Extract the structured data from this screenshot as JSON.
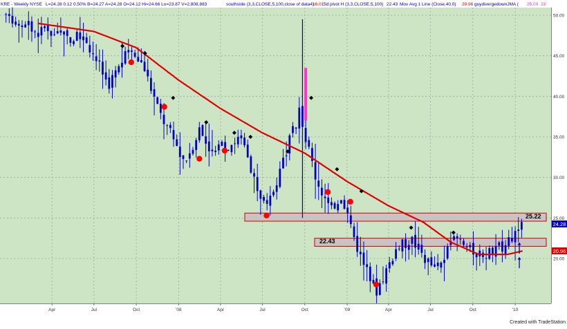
{
  "header": {
    "symbol_line": "KRE - Weekly  NYSE",
    "quote": "L=24.28  0.12  0.50%  B=24.27  A=24.28  O=24.12  Hi=24.66  Lo=23.87  V=2,808,883",
    "study1": "southside (3,3,CLOSE,5,100,close of data4)",
    "study1_value": "16.01",
    "study2": "5d pivot H (3,3,CLOSE,5,100)",
    "study2_value": "22.43",
    "study3": "Mov Avg 1 Line (Close,40,0)",
    "study3_value": "20.96",
    "study4": "guydivergedownJMA (",
    "study4_value": "25.09",
    "study4_extra": "23"
  },
  "footer": {
    "credit": "Created with TradeStation"
  },
  "annotations": {
    "resistance_label": "25.22",
    "support_label": "22.43",
    "last_price_tag": "24.28",
    "ma_price_tag": "20.96"
  },
  "colors": {
    "background": "#cde5c4",
    "grid": "#9aa79a",
    "up_bar": "#0000cc",
    "ma_line": "#e00000",
    "highlight_bar": "#ff33cc",
    "zone_fill": "#c9c3c3",
    "zone_border": "#cc0000",
    "pivot_high_dot": "#000000",
    "pivot_low_dot": "#ff0000",
    "arrow": "#0000cc"
  },
  "chart_data": {
    "type": "ohlc-bar",
    "title": "KRE - Weekly",
    "x_tick_labels": [
      "Apr",
      "Jul",
      "Oct",
      "'08",
      "Apr",
      "Jul",
      "Oct",
      "'09",
      "Apr",
      "Jul",
      "Oct",
      "'10"
    ],
    "y_tick_labels": [
      "20.00",
      "25.00",
      "30.00",
      "35.00",
      "40.00",
      "45.00",
      "50.00"
    ],
    "ylim": [
      14.5,
      52
    ],
    "grid": true,
    "close_anchors": [
      {
        "date": "2007-01-01",
        "value": 49.5
      },
      {
        "date": "2007-03-01",
        "value": 48.0
      },
      {
        "date": "2007-05-01",
        "value": 47.5
      },
      {
        "date": "2007-06-15",
        "value": 47.0
      },
      {
        "date": "2007-08-01",
        "value": 41.5
      },
      {
        "date": "2007-09-15",
        "value": 45.5
      },
      {
        "date": "2007-10-15",
        "value": 44.0
      },
      {
        "date": "2007-11-20",
        "value": 38.0
      },
      {
        "date": "2008-01-15",
        "value": 32.0
      },
      {
        "date": "2008-02-15",
        "value": 36.0
      },
      {
        "date": "2008-03-15",
        "value": 33.0
      },
      {
        "date": "2008-05-15",
        "value": 35.0
      },
      {
        "date": "2008-06-15",
        "value": 29.0
      },
      {
        "date": "2008-07-10",
        "value": 26.0
      },
      {
        "date": "2008-08-20",
        "value": 33.0
      },
      {
        "date": "2008-09-20",
        "value": 38.0
      },
      {
        "date": "2008-10-25",
        "value": 30.0
      },
      {
        "date": "2008-11-25",
        "value": 26.0
      },
      {
        "date": "2008-12-20",
        "value": 28.0
      },
      {
        "date": "2009-01-25",
        "value": 21.0
      },
      {
        "date": "2009-03-05",
        "value": 16.0
      },
      {
        "date": "2009-04-15",
        "value": 21.0
      },
      {
        "date": "2009-05-20",
        "value": 22.5
      },
      {
        "date": "2009-06-20",
        "value": 20.0
      },
      {
        "date": "2009-07-15",
        "value": 18.5
      },
      {
        "date": "2009-08-25",
        "value": 22.5
      },
      {
        "date": "2009-09-25",
        "value": 21.0
      },
      {
        "date": "2009-11-10",
        "value": 20.5
      },
      {
        "date": "2009-12-15",
        "value": 22.0
      },
      {
        "date": "2010-01-20",
        "value": 24.28
      }
    ],
    "moving_average_40": [
      {
        "date": "2007-03-01",
        "value": 49.0
      },
      {
        "date": "2007-07-01",
        "value": 48.0
      },
      {
        "date": "2007-10-01",
        "value": 46.0
      },
      {
        "date": "2008-01-01",
        "value": 42.0
      },
      {
        "date": "2008-04-01",
        "value": 38.5
      },
      {
        "date": "2008-07-01",
        "value": 35.5
      },
      {
        "date": "2008-10-01",
        "value": 33.0
      },
      {
        "date": "2009-01-01",
        "value": 29.5
      },
      {
        "date": "2009-04-01",
        "value": 26.5
      },
      {
        "date": "2009-06-15",
        "value": 24.5
      },
      {
        "date": "2009-08-15",
        "value": 22.0
      },
      {
        "date": "2009-10-15",
        "value": 20.5
      },
      {
        "date": "2009-12-15",
        "value": 20.5
      },
      {
        "date": "2010-01-20",
        "value": 20.96
      }
    ],
    "spike_bar": {
      "date": "2008-09-26",
      "high": 49.5,
      "low": 25.0
    },
    "highlight_bar": {
      "date": "2008-10-03",
      "high": 43.5,
      "low": 37.0
    },
    "pivot_highs": [
      {
        "date": "2007-09-01",
        "value": 46.2
      },
      {
        "date": "2007-10-20",
        "value": 45.3
      },
      {
        "date": "2007-12-20",
        "value": 39.8
      },
      {
        "date": "2008-03-01",
        "value": 36.8
      },
      {
        "date": "2008-05-01",
        "value": 35.5
      },
      {
        "date": "2008-06-05",
        "value": 35.0
      },
      {
        "date": "2008-08-25",
        "value": 33.2
      },
      {
        "date": "2008-10-15",
        "value": 39.8
      },
      {
        "date": "2008-12-10",
        "value": 31.0
      },
      {
        "date": "2009-02-01",
        "value": 28.3
      },
      {
        "date": "2009-05-20",
        "value": 23.8
      },
      {
        "date": "2009-08-20",
        "value": 23.2
      }
    ],
    "pivot_lows": [
      {
        "date": "2007-09-20",
        "value": 44.2
      },
      {
        "date": "2007-12-01",
        "value": 38.7
      },
      {
        "date": "2008-02-15",
        "value": 32.3
      },
      {
        "date": "2008-04-10",
        "value": 33.3
      },
      {
        "date": "2008-07-10",
        "value": 25.3
      },
      {
        "date": "2008-11-20",
        "value": 28.2
      },
      {
        "date": "2009-01-08",
        "value": 27.0
      },
      {
        "date": "2009-03-05",
        "value": 16.8
      }
    ],
    "zones": [
      {
        "label": "25.22",
        "low": 24.6,
        "high": 25.6
      },
      {
        "label": "22.43",
        "low": 21.5,
        "high": 22.5
      }
    ],
    "arrows": [
      {
        "date": "2010-01-10",
        "value_from": 18.8,
        "value_to": 20.2
      },
      {
        "date": "2010-01-10",
        "value_from": 20.6,
        "value_to": 22.0
      }
    ]
  }
}
